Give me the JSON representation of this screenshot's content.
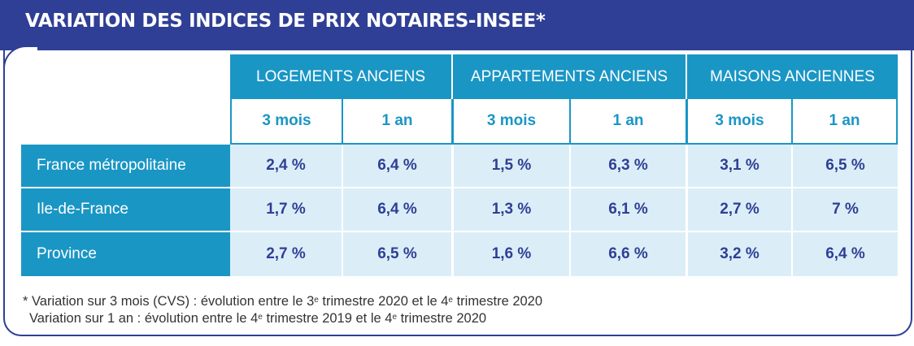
{
  "title": "VARIATION DES INDICES DE PRIX NOTAIRES-INSEE*",
  "groups": [
    "LOGEMENTS ANCIENS",
    "APPARTEMENTS ANCIENS",
    "MAISONS ANCIENNES"
  ],
  "subheads": [
    "3 mois",
    "1 an",
    "3 mois",
    "1 an",
    "3 mois",
    "1 an"
  ],
  "rows": [
    {
      "label": "France métropolitaine",
      "values": [
        "2,4 %",
        "6,4 %",
        "1,5 %",
        "6,3 %",
        "3,1 %",
        "6,5 %"
      ]
    },
    {
      "label": "Ile-de-France",
      "values": [
        "1,7 %",
        "6,4 %",
        "1,3 %",
        "6,1 %",
        "2,7 %",
        "7 %"
      ]
    },
    {
      "label": "Province",
      "values": [
        "2,7 %",
        "6,5 %",
        "1,6 %",
        "6,6 %",
        "3,2 %",
        "6,4 %"
      ]
    }
  ],
  "footnote": {
    "line1_prefix": "* Variation sur 3 mois (CVS) : évolution entre le 3",
    "line1_sup1": "e",
    "line1_mid": " trimestre 2020 et le 4",
    "line1_sup2": "e",
    "line1_suffix": " trimestre 2020",
    "line2_prefix": "Variation sur 1 an : évolution entre le 4",
    "line2_sup1": "e",
    "line2_mid": " trimestre 2019 et le 4",
    "line2_sup2": "e",
    "line2_suffix": " trimestre 2020"
  },
  "colors": {
    "navy": "#2f3f95",
    "blue": "#1a96c5",
    "light": "#dbeef8"
  }
}
